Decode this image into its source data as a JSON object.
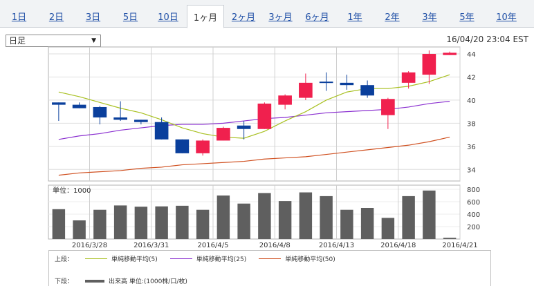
{
  "tabs": [
    {
      "label": "1日",
      "active": false
    },
    {
      "label": "2日",
      "active": false
    },
    {
      "label": "3日",
      "active": false
    },
    {
      "label": "5日",
      "active": false
    },
    {
      "label": "10日",
      "active": false
    },
    {
      "label": "1ヶ月",
      "active": true
    },
    {
      "label": "2ヶ月",
      "active": false
    },
    {
      "label": "3ヶ月",
      "active": false
    },
    {
      "label": "6ヶ月",
      "active": false
    },
    {
      "label": "1年",
      "active": false
    },
    {
      "label": "2年",
      "active": false
    },
    {
      "label": "3年",
      "active": false
    },
    {
      "label": "5年",
      "active": false
    },
    {
      "label": "10年",
      "active": false
    }
  ],
  "period_select": {
    "value": "日足"
  },
  "timestamp": "16/04/20 23:04 EST",
  "legend": {
    "upper_label": "上段：",
    "lower_label": "下段：",
    "ma5_label": "単純移動平均(5)",
    "ma25_label": "単純移動平均(25)",
    "ma50_label": "単純移動平均(50)",
    "volume_label": "出来高 単位:(1000株/口/枚)"
  },
  "colors": {
    "up": "#f0204e",
    "down": "#0a3f9c",
    "ma5": "#a8c020",
    "ma25": "#8a2fd0",
    "ma50": "#d05020",
    "volume": "#5f5f5f",
    "active_tab_text": "#333333",
    "tab_link": "#1f4fa6"
  },
  "chart_data": [
    {
      "type": "candlestick",
      "ylim": [
        33,
        44.6
      ],
      "yticks": [
        34,
        36,
        38,
        40,
        42,
        44
      ],
      "x_labels": [
        {
          "label": "2016/3/28",
          "index": 1
        },
        {
          "label": "2016/3/31",
          "index": 4
        },
        {
          "label": "2016/4/5",
          "index": 7
        },
        {
          "label": "2016/4/8",
          "index": 10
        },
        {
          "label": "2016/4/13",
          "index": 13
        },
        {
          "label": "2016/4/18",
          "index": 16
        },
        {
          "label": "2016/4/21",
          "index": 19
        }
      ],
      "candles": [
        {
          "open": 39.8,
          "high": 39.8,
          "low": 38.2,
          "close": 39.6
        },
        {
          "open": 39.6,
          "high": 39.8,
          "low": 39.3,
          "close": 39.3
        },
        {
          "open": 39.4,
          "high": 39.5,
          "low": 37.9,
          "close": 38.5
        },
        {
          "open": 38.5,
          "high": 39.9,
          "low": 38.2,
          "close": 38.3
        },
        {
          "open": 38.3,
          "high": 38.3,
          "low": 37.9,
          "close": 38.1
        },
        {
          "open": 38.1,
          "high": 38.5,
          "low": 36.6,
          "close": 36.6
        },
        {
          "open": 36.6,
          "high": 36.6,
          "low": 35.4,
          "close": 35.4
        },
        {
          "open": 35.4,
          "high": 36.6,
          "low": 35.2,
          "close": 36.5
        },
        {
          "open": 36.5,
          "high": 37.7,
          "low": 36.5,
          "close": 37.6
        },
        {
          "open": 37.8,
          "high": 38.2,
          "low": 36.6,
          "close": 37.5
        },
        {
          "open": 37.5,
          "high": 39.8,
          "low": 37.5,
          "close": 39.7
        },
        {
          "open": 39.6,
          "high": 40.5,
          "low": 39.2,
          "close": 40.4
        },
        {
          "open": 40.2,
          "high": 42.3,
          "low": 40.0,
          "close": 41.5
        },
        {
          "open": 41.6,
          "high": 42.4,
          "low": 40.8,
          "close": 41.5
        },
        {
          "open": 41.5,
          "high": 42.2,
          "low": 40.9,
          "close": 41.3
        },
        {
          "open": 41.3,
          "high": 41.7,
          "low": 40.2,
          "close": 40.4
        },
        {
          "open": 38.7,
          "high": 40.2,
          "low": 37.5,
          "close": 40.1
        },
        {
          "open": 41.5,
          "high": 42.5,
          "low": 41.0,
          "close": 42.4
        },
        {
          "open": 42.2,
          "high": 44.3,
          "low": 41.4,
          "close": 44.0
        },
        {
          "open": 43.9,
          "high": 44.2,
          "low": 43.9,
          "close": 44.1
        }
      ],
      "ma5": [
        40.7,
        40.3,
        39.8,
        39.3,
        38.9,
        38.3,
        37.6,
        37.1,
        36.8,
        36.7,
        37.3,
        38.2,
        39.0,
        40.0,
        40.7,
        41.0,
        41.0,
        41.2,
        41.6,
        42.2
      ],
      "ma25": [
        36.6,
        36.9,
        37.1,
        37.4,
        37.6,
        37.8,
        37.9,
        37.9,
        38.0,
        38.2,
        38.4,
        38.5,
        38.7,
        38.9,
        39.0,
        39.1,
        39.2,
        39.4,
        39.7,
        39.9
      ],
      "ma50": [
        33.5,
        33.7,
        33.8,
        33.9,
        34.1,
        34.2,
        34.4,
        34.5,
        34.6,
        34.7,
        34.9,
        35.0,
        35.1,
        35.3,
        35.5,
        35.7,
        35.9,
        36.1,
        36.4,
        36.8
      ]
    },
    {
      "type": "bar",
      "title": "単位：1000",
      "ylim": [
        0,
        800
      ],
      "yticks": [
        200,
        400,
        600,
        800
      ],
      "values": [
        480,
        300,
        470,
        540,
        520,
        525,
        535,
        470,
        700,
        570,
        740,
        610,
        750,
        690,
        470,
        500,
        340,
        690,
        780,
        20
      ]
    }
  ]
}
